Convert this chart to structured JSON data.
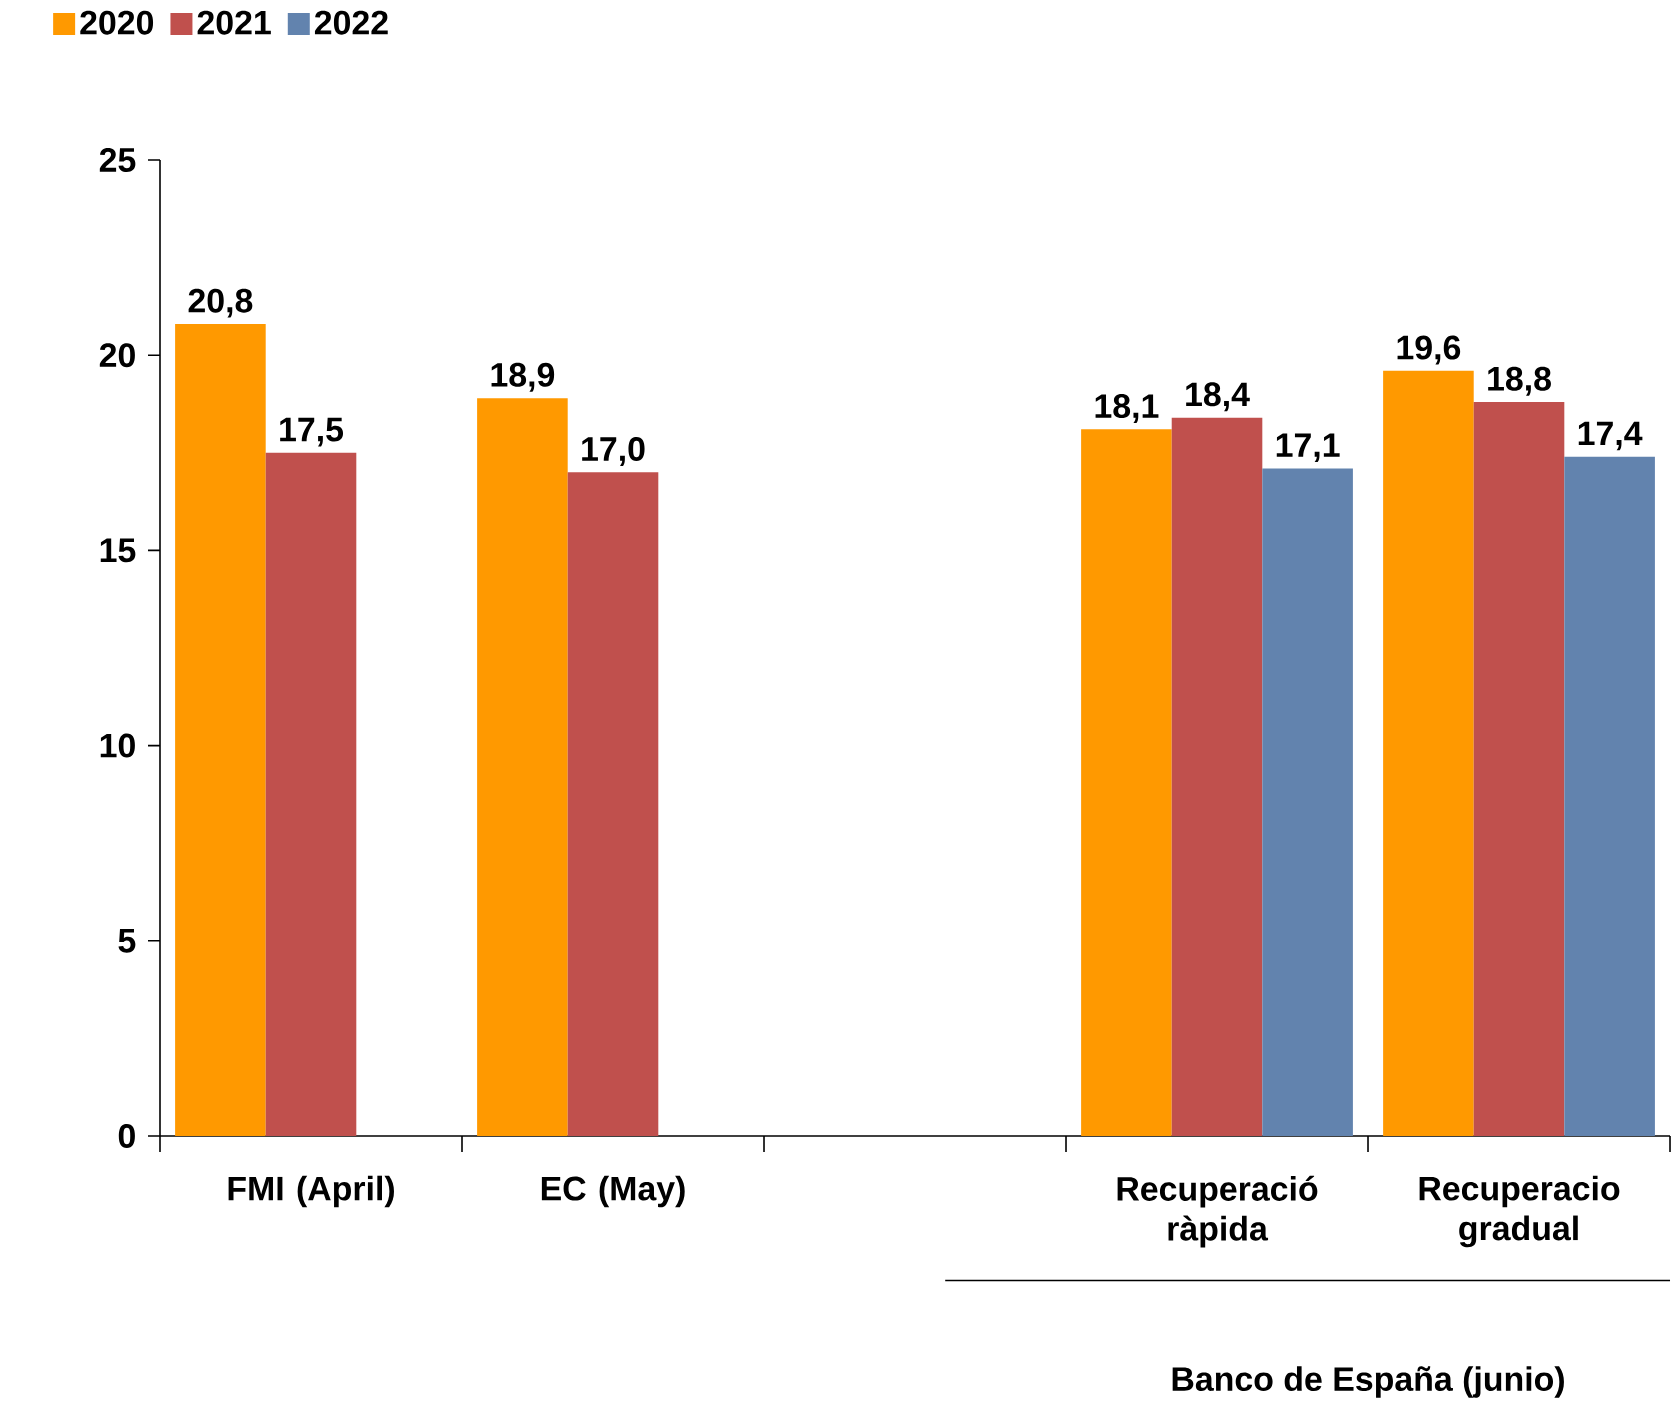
{
  "chart_data": {
    "type": "bar",
    "categories": [
      "FMI (April)",
      "EC (May)",
      null,
      "Recuperació ràpida",
      "Recuperacio gradual"
    ],
    "series": [
      {
        "name": "2020",
        "color": "#ff9900",
        "values": [
          20.8,
          18.9,
          null,
          18.1,
          19.6
        ],
        "value_labels": [
          "20,8",
          "18,9",
          null,
          "18,1",
          "19,6"
        ]
      },
      {
        "name": "2021",
        "color": "#c0504d",
        "values": [
          17.5,
          17.0,
          null,
          18.4,
          18.8
        ],
        "value_labels": [
          "17,5",
          "17,0",
          null,
          "18,4",
          "18,8"
        ]
      },
      {
        "name": "2022",
        "color": "#6283ae",
        "values": [
          null,
          null,
          null,
          17.1,
          17.4
        ],
        "value_labels": [
          null,
          null,
          null,
          "17,1",
          "17,4"
        ]
      }
    ],
    "ylim": [
      0,
      25
    ],
    "yticks": [
      0,
      5,
      10,
      15,
      20,
      25
    ],
    "legend": "top left",
    "grid": false,
    "annotations": [
      "Banco de España (junio)"
    ]
  }
}
